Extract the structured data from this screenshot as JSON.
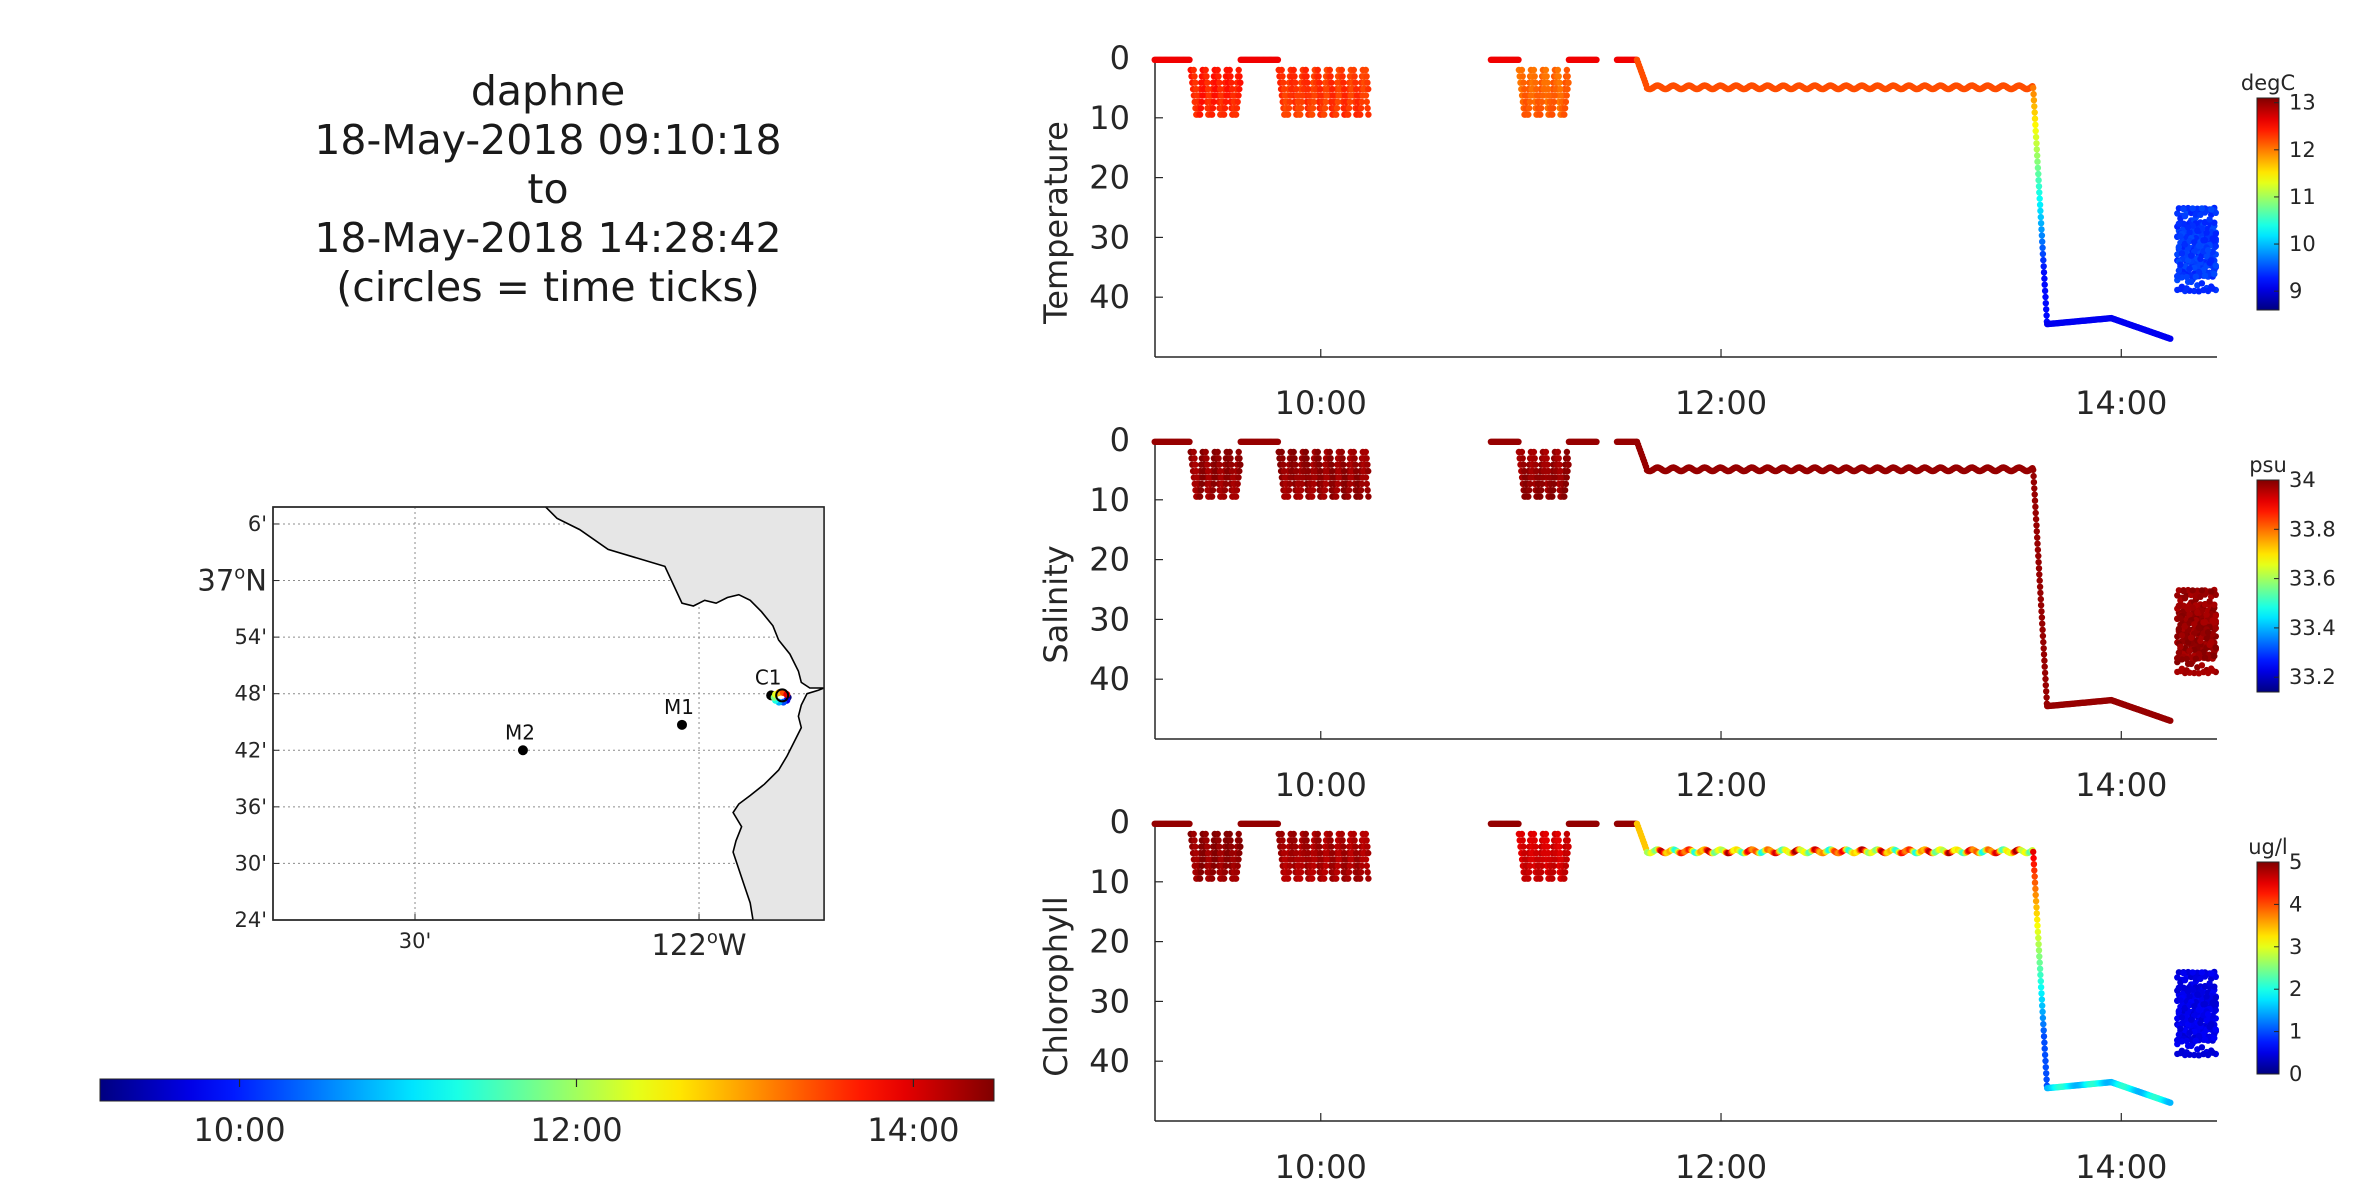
{
  "header": {
    "lines": [
      "daphne",
      "18-May-2018 09:10:18",
      "to",
      "18-May-2018 14:28:42",
      "(circles = time ticks)"
    ]
  },
  "colormap": "jet",
  "time_colorbar": {
    "range_hours": [
      9.1717,
      14.4783
    ],
    "ticks": [
      {
        "t": 10,
        "label": "10:00"
      },
      {
        "t": 12,
        "label": "12:00"
      },
      {
        "t": 14,
        "label": "14:00"
      }
    ]
  },
  "map": {
    "lon_range": [
      -122.75,
      -121.78
    ],
    "lat_range": [
      36.4,
      37.13
    ],
    "lat_ticks": [
      {
        "lat": 37.1,
        "label": "6'",
        "big": false
      },
      {
        "lat": 37.0,
        "label": "37",
        "sup": "o",
        "suffix": "N",
        "big": true
      },
      {
        "lat": 36.9,
        "label": "54'",
        "big": false
      },
      {
        "lat": 36.8,
        "label": "48'",
        "big": false
      },
      {
        "lat": 36.7,
        "label": "42'",
        "big": false
      },
      {
        "lat": 36.6,
        "label": "36'",
        "big": false
      },
      {
        "lat": 36.5,
        "label": "30'",
        "big": false
      },
      {
        "lat": 36.4,
        "label": "24'",
        "big": false
      }
    ],
    "lon_ticks": [
      {
        "lon": -122.5,
        "label": "30'",
        "big": false
      },
      {
        "lon": -122.0,
        "label": "122",
        "sup": "o",
        "suffix": "W",
        "big": true
      }
    ],
    "land_color": "#e6e6e6",
    "stations": [
      {
        "name": "M2",
        "lon": -122.31,
        "lat": 36.7
      },
      {
        "name": "M1",
        "lon": -122.03,
        "lat": 36.745
      },
      {
        "name": "C1",
        "lon": -121.873,
        "lat": 36.797
      }
    ],
    "coastline": [
      [
        -122.27,
        37.13
      ],
      [
        -122.25,
        37.11
      ],
      [
        -122.21,
        37.09
      ],
      [
        -122.16,
        37.055
      ],
      [
        -122.11,
        37.04
      ],
      [
        -122.06,
        37.025
      ],
      [
        -122.03,
        36.96
      ],
      [
        -122.01,
        36.955
      ],
      [
        -121.99,
        36.965
      ],
      [
        -121.97,
        36.96
      ],
      [
        -121.95,
        36.97
      ],
      [
        -121.93,
        36.975
      ],
      [
        -121.91,
        36.965
      ],
      [
        -121.89,
        36.945
      ],
      [
        -121.87,
        36.92
      ],
      [
        -121.86,
        36.895
      ],
      [
        -121.84,
        36.87
      ],
      [
        -121.825,
        36.84
      ],
      [
        -121.82,
        36.82
      ],
      [
        -121.805,
        36.81
      ],
      [
        -121.79,
        36.81
      ],
      [
        -121.78,
        36.81
      ],
      [
        -121.79,
        36.806
      ],
      [
        -121.81,
        36.8
      ],
      [
        -121.82,
        36.78
      ],
      [
        -121.825,
        36.76
      ],
      [
        -121.82,
        36.74
      ],
      [
        -121.83,
        36.72
      ],
      [
        -121.845,
        36.69
      ],
      [
        -121.86,
        36.665
      ],
      [
        -121.885,
        36.64
      ],
      [
        -121.91,
        36.62
      ],
      [
        -121.93,
        36.605
      ],
      [
        -121.94,
        36.59
      ],
      [
        -121.925,
        36.565
      ],
      [
        -121.935,
        36.54
      ],
      [
        -121.94,
        36.52
      ],
      [
        -121.93,
        36.49
      ],
      [
        -121.92,
        36.46
      ],
      [
        -121.91,
        36.43
      ],
      [
        -121.905,
        36.4
      ]
    ]
  },
  "time_axis": {
    "range_hours": [
      9.1717,
      14.4783
    ],
    "ticks": [
      {
        "t": 10,
        "label": "10:00"
      },
      {
        "t": 12,
        "label": "12:00"
      },
      {
        "t": 14,
        "label": "14:00"
      }
    ]
  },
  "chart_data": [
    {
      "type": "scatter",
      "ylabel": "Temperature",
      "units": "degC",
      "ylim": [
        50,
        0
      ],
      "yticks": [
        0,
        10,
        20,
        30,
        40
      ],
      "clim": [
        8.6,
        13.1
      ],
      "cticks": [
        9,
        10,
        11,
        12,
        13
      ],
      "segment_values": {
        "surface": 12.6,
        "yo1": 12.4,
        "yo2": 12.3,
        "yo3": 12.1,
        "level5": 12.2,
        "descent_top": 12.0,
        "descent_bottom": 9.2,
        "bottom": 9.1,
        "cluster": 9.4
      }
    },
    {
      "type": "scatter",
      "ylabel": "Salinity",
      "units": "psu",
      "ylim": [
        50,
        0
      ],
      "yticks": [
        0,
        10,
        20,
        30,
        40
      ],
      "clim": [
        33.14,
        34.0
      ],
      "cticks": [
        33.2,
        33.4,
        33.6,
        33.8,
        34
      ],
      "segment_values": {
        "surface": 33.98,
        "yo1": 33.98,
        "yo2": 33.98,
        "yo3": 33.98,
        "level5": 33.98,
        "descent_top": 33.98,
        "descent_bottom": 33.98,
        "bottom": 33.98,
        "cluster": 33.98
      }
    },
    {
      "type": "scatter",
      "ylabel": "Chlorophyll",
      "units": "ug/l",
      "ylim": [
        50,
        0
      ],
      "yticks": [
        0,
        10,
        20,
        30,
        40
      ],
      "clim": [
        0,
        5
      ],
      "cticks": [
        0,
        1,
        2,
        3,
        4,
        5
      ],
      "segment_values": {
        "surface": 4.9,
        "yo1": 4.9,
        "yo2": 4.8,
        "yo3": 4.6,
        "level5": 3.4,
        "descent_top": 4.5,
        "descent_bottom": 1.0,
        "bottom": 1.8,
        "cluster": 0.5
      }
    }
  ]
}
